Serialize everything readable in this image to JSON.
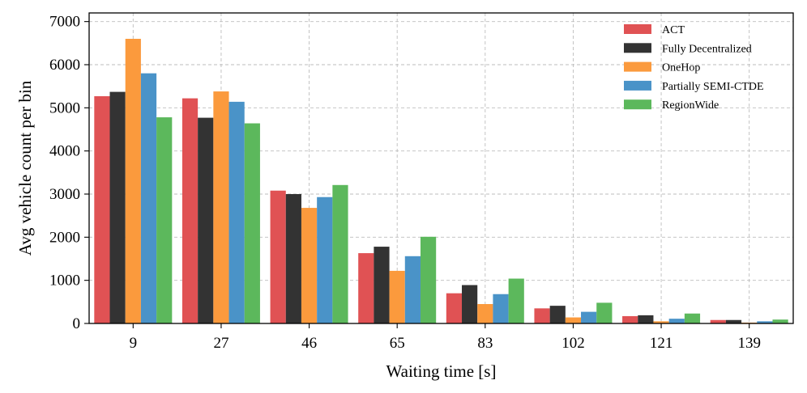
{
  "chart_data": {
    "type": "bar",
    "xlabel": "Waiting time [s]",
    "ylabel": "Avg vehicle count per bin",
    "categories": [
      "9",
      "27",
      "46",
      "65",
      "83",
      "102",
      "121",
      "139"
    ],
    "ylim": [
      0,
      7200
    ],
    "yticks": [
      0,
      1000,
      2000,
      3000,
      4000,
      5000,
      6000,
      7000
    ],
    "grid": true,
    "legend_position": "top-right",
    "series": [
      {
        "name": "ACT",
        "color": "#e05254",
        "values": [
          5270,
          5220,
          3080,
          1630,
          700,
          350,
          170,
          80
        ]
      },
      {
        "name": "Fully Decentralized",
        "color": "#333333",
        "values": [
          5370,
          4770,
          3000,
          1780,
          890,
          410,
          190,
          80
        ]
      },
      {
        "name": "OneHop",
        "color": "#fb9a3d",
        "values": [
          6600,
          5380,
          2680,
          1220,
          450,
          140,
          50,
          20
        ]
      },
      {
        "name": "Partially SEMI-CTDE",
        "color": "#4a93c8",
        "values": [
          5800,
          5140,
          2930,
          1560,
          680,
          270,
          110,
          50
        ]
      },
      {
        "name": "RegionWide",
        "color": "#5cb85c",
        "values": [
          4780,
          4640,
          3210,
          2010,
          1040,
          480,
          230,
          90
        ]
      }
    ]
  }
}
